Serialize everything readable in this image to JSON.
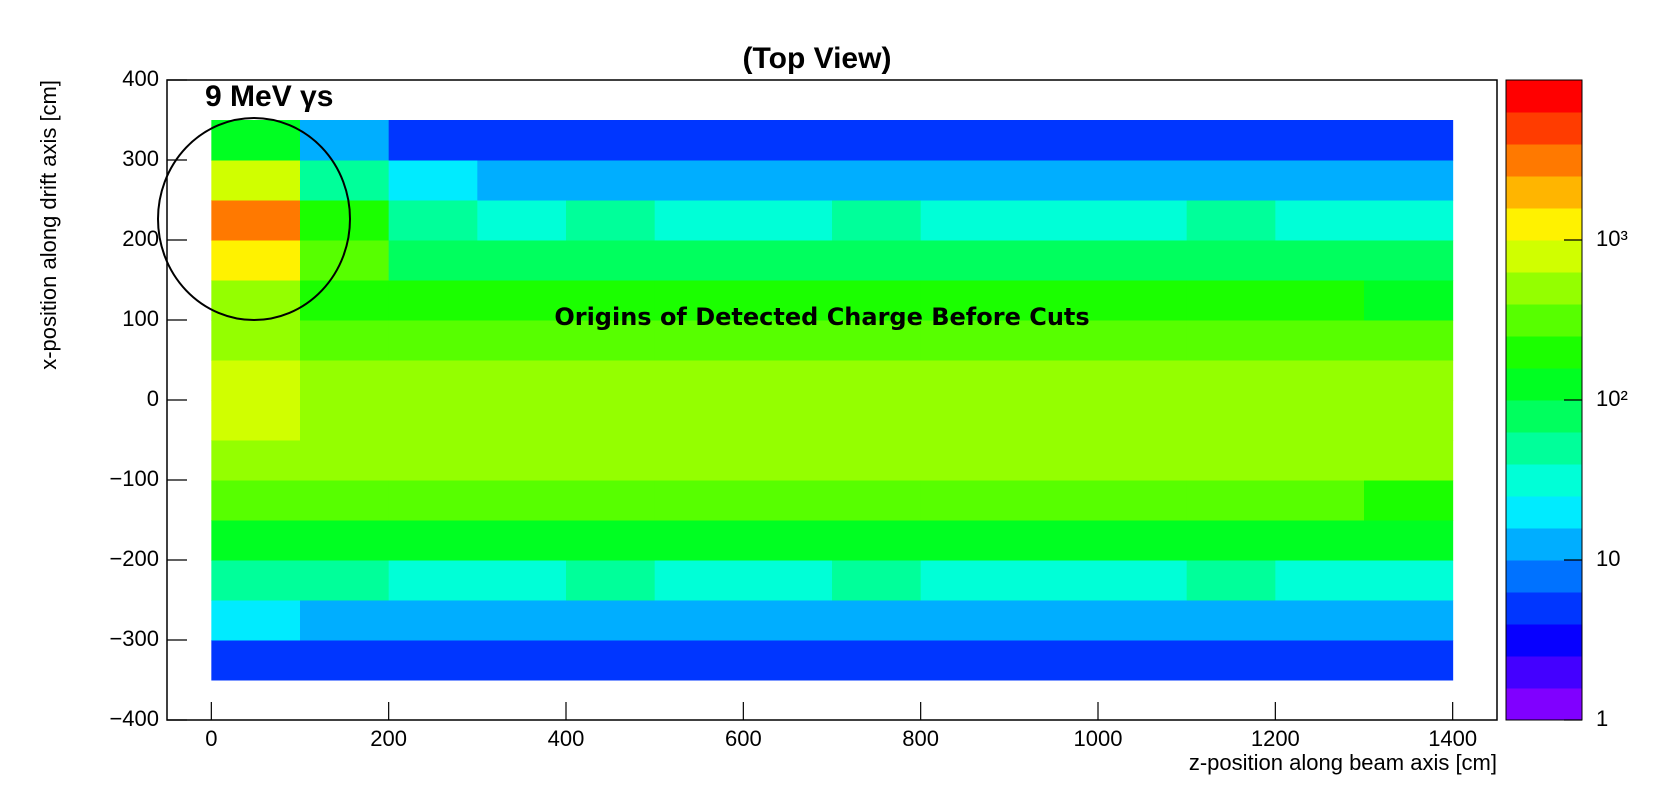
{
  "chart_data": {
    "type": "heatmap",
    "title": "(Top View)",
    "x_label": "z-position along beam axis  [cm]",
    "y_label": "x-position along drift axis  [cm]",
    "annotations": [
      "9 MeV  γs",
      "Origins of Detected Charge Before Cuts"
    ],
    "x_bins": [
      0,
      100,
      200,
      300,
      400,
      500,
      600,
      700,
      800,
      900,
      1000,
      1100,
      1200,
      1300,
      1400
    ],
    "y_bins": [
      -350,
      -300,
      -250,
      -200,
      -150,
      -100,
      -50,
      0,
      50,
      100,
      150,
      200,
      250,
      300,
      350
    ],
    "values": [
      [
        6,
        5,
        5,
        4,
        5,
        5,
        4,
        5,
        5,
        4,
        5,
        5,
        4,
        4
      ],
      [
        16,
        15,
        14,
        13,
        15,
        14,
        13,
        15,
        14,
        13,
        14,
        15,
        13,
        12
      ],
      [
        45,
        40,
        38,
        36,
        40,
        38,
        36,
        40,
        38,
        36,
        38,
        40,
        36,
        32
      ],
      [
        130,
        120,
        115,
        110,
        120,
        115,
        110,
        120,
        115,
        110,
        115,
        120,
        110,
        100
      ],
      [
        320,
        300,
        290,
        280,
        300,
        290,
        280,
        300,
        290,
        280,
        290,
        300,
        280,
        250
      ],
      [
        550,
        500,
        480,
        470,
        500,
        480,
        470,
        500,
        480,
        470,
        480,
        500,
        470,
        420
      ],
      [
        650,
        600,
        580,
        560,
        600,
        580,
        560,
        600,
        580,
        560,
        580,
        600,
        560,
        500
      ],
      [
        700,
        600,
        580,
        560,
        600,
        580,
        560,
        600,
        580,
        560,
        580,
        600,
        560,
        500
      ],
      [
        500,
        350,
        340,
        330,
        350,
        340,
        330,
        350,
        340,
        330,
        340,
        350,
        330,
        300
      ],
      [
        600,
        190,
        175,
        170,
        180,
        175,
        170,
        180,
        175,
        170,
        175,
        180,
        170,
        150
      ],
      [
        1500,
        300,
        90,
        85,
        90,
        88,
        85,
        90,
        88,
        85,
        88,
        90,
        85,
        75
      ],
      [
        3000,
        200,
        42,
        38,
        40,
        39,
        38,
        40,
        39,
        38,
        39,
        40,
        38,
        34
      ],
      [
        800,
        60,
        16,
        14,
        15,
        15,
        14,
        15,
        15,
        14,
        15,
        15,
        14,
        13
      ],
      [
        100,
        15,
        5,
        5,
        5,
        5,
        4,
        5,
        5,
        4,
        5,
        5,
        4,
        4
      ]
    ],
    "xlim": [
      -50,
      1450
    ],
    "xticks": [
      0,
      200,
      400,
      600,
      800,
      1000,
      1200,
      1400
    ],
    "ylim": [
      -400,
      400
    ],
    "yticks": [
      {
        "value": -400,
        "label": "−400"
      },
      {
        "value": -300,
        "label": "−300"
      },
      {
        "value": -200,
        "label": "−200"
      },
      {
        "value": -100,
        "label": "−100"
      },
      0,
      100,
      200,
      300,
      400
    ],
    "zlim": [
      1,
      10000
    ],
    "zticks": [
      1,
      10,
      {
        "value": 100,
        "label": "10²"
      },
      {
        "value": 1000,
        "label": "10³"
      }
    ],
    "log_z": true,
    "colormap": "rainbow"
  }
}
